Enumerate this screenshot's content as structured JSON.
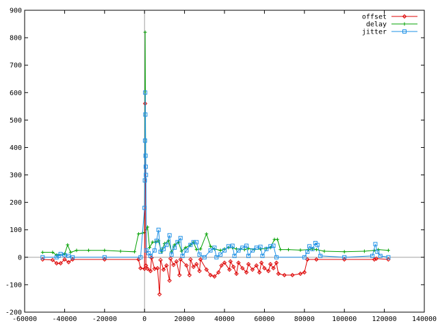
{
  "chart_data": {
    "type": "line",
    "title": "",
    "xlabel": "",
    "ylabel": "",
    "xlim": [
      -60000,
      140000
    ],
    "ylim": [
      -200,
      900
    ],
    "xticks": [
      -60000,
      -40000,
      -20000,
      0,
      20000,
      40000,
      60000,
      80000,
      100000,
      120000,
      140000
    ],
    "yticks": [
      -200,
      -100,
      0,
      100,
      200,
      300,
      400,
      500,
      600,
      700,
      800,
      900
    ],
    "grid": false,
    "legend_position": "top-right",
    "reference_lines": {
      "x_zero": true,
      "y_zero": true
    },
    "series": [
      {
        "name": "offset",
        "color": "#dd0000",
        "marker": "diamond",
        "points": [
          [
            -51000,
            -8
          ],
          [
            -46000,
            -10
          ],
          [
            -44000,
            -22
          ],
          [
            -42000,
            -22
          ],
          [
            -40000,
            -8
          ],
          [
            -38000,
            -18
          ],
          [
            -36000,
            -8
          ],
          [
            -20000,
            -8
          ],
          [
            -3000,
            -8
          ],
          [
            -2000,
            -40
          ],
          [
            0,
            -42
          ],
          [
            300,
            560
          ],
          [
            700,
            -30
          ],
          [
            1500,
            -42
          ],
          [
            3000,
            -50
          ],
          [
            3500,
            -2
          ],
          [
            5000,
            -42
          ],
          [
            6500,
            -40
          ],
          [
            7500,
            -135
          ],
          [
            8000,
            -10
          ],
          [
            9500,
            -45
          ],
          [
            11000,
            -30
          ],
          [
            12500,
            -85
          ],
          [
            13000,
            -5
          ],
          [
            14500,
            -28
          ],
          [
            16000,
            -15
          ],
          [
            17500,
            -65
          ],
          [
            18000,
            -8
          ],
          [
            21000,
            -30
          ],
          [
            22500,
            -65
          ],
          [
            23000,
            -8
          ],
          [
            24500,
            -35
          ],
          [
            26000,
            -25
          ],
          [
            27500,
            -50
          ],
          [
            28000,
            -8
          ],
          [
            31000,
            -45
          ],
          [
            33000,
            -65
          ],
          [
            35000,
            -70
          ],
          [
            37000,
            -55
          ],
          [
            38500,
            -30
          ],
          [
            40000,
            -20
          ],
          [
            42500,
            -45
          ],
          [
            43000,
            -15
          ],
          [
            44500,
            -35
          ],
          [
            46000,
            -60
          ],
          [
            47000,
            -20
          ],
          [
            49000,
            -40
          ],
          [
            51000,
            -55
          ],
          [
            52000,
            -25
          ],
          [
            54000,
            -45
          ],
          [
            56000,
            -30
          ],
          [
            57500,
            -55
          ],
          [
            58500,
            -20
          ],
          [
            60000,
            -40
          ],
          [
            62000,
            -50
          ],
          [
            63000,
            -25
          ],
          [
            64500,
            -40
          ],
          [
            66000,
            -20
          ],
          [
            67000,
            -60
          ],
          [
            70000,
            -65
          ],
          [
            74000,
            -65
          ],
          [
            78000,
            -60
          ],
          [
            80000,
            -55
          ],
          [
            81500,
            -8
          ],
          [
            86000,
            -8
          ],
          [
            100000,
            -8
          ],
          [
            115000,
            -8
          ],
          [
            116000,
            -5
          ],
          [
            122000,
            -8
          ]
        ]
      },
      {
        "name": "delay",
        "color": "#00a000",
        "marker": "plus",
        "points": [
          [
            -51000,
            18
          ],
          [
            -46000,
            18
          ],
          [
            -44000,
            8
          ],
          [
            -40000,
            12
          ],
          [
            -38500,
            45
          ],
          [
            -37000,
            18
          ],
          [
            -34000,
            25
          ],
          [
            -28000,
            25
          ],
          [
            -20000,
            25
          ],
          [
            -12000,
            22
          ],
          [
            -5000,
            20
          ],
          [
            -3000,
            85
          ],
          [
            -1000,
            88
          ],
          [
            0,
            90
          ],
          [
            300,
            820
          ],
          [
            700,
            100
          ],
          [
            1500,
            110
          ],
          [
            2500,
            35
          ],
          [
            4000,
            55
          ],
          [
            5500,
            55
          ],
          [
            7000,
            60
          ],
          [
            8500,
            20
          ],
          [
            10000,
            50
          ],
          [
            12000,
            60
          ],
          [
            13500,
            20
          ],
          [
            15000,
            45
          ],
          [
            17000,
            55
          ],
          [
            18500,
            22
          ],
          [
            20500,
            35
          ],
          [
            23000,
            45
          ],
          [
            24500,
            55
          ],
          [
            26000,
            28
          ],
          [
            28000,
            30
          ],
          [
            31000,
            85
          ],
          [
            33000,
            40
          ],
          [
            35000,
            30
          ],
          [
            38000,
            25
          ],
          [
            40000,
            30
          ],
          [
            42000,
            35
          ],
          [
            44000,
            35
          ],
          [
            46000,
            30
          ],
          [
            48000,
            30
          ],
          [
            50000,
            28
          ],
          [
            52000,
            32
          ],
          [
            55000,
            28
          ],
          [
            58000,
            30
          ],
          [
            61000,
            32
          ],
          [
            63000,
            35
          ],
          [
            65000,
            65
          ],
          [
            66500,
            65
          ],
          [
            68000,
            28
          ],
          [
            72000,
            28
          ],
          [
            78000,
            26
          ],
          [
            82000,
            28
          ],
          [
            84000,
            30
          ],
          [
            86000,
            28
          ],
          [
            90000,
            22
          ],
          [
            100000,
            20
          ],
          [
            110000,
            22
          ],
          [
            115000,
            25
          ],
          [
            117000,
            28
          ],
          [
            122000,
            25
          ]
        ]
      },
      {
        "name": "jitter",
        "color": "#1e90e6",
        "marker": "square",
        "points": [
          [
            -51000,
            0
          ],
          [
            -44000,
            0
          ],
          [
            -43000,
            5
          ],
          [
            -42000,
            12
          ],
          [
            -40000,
            8
          ],
          [
            -38000,
            5
          ],
          [
            -36000,
            0
          ],
          [
            -20000,
            0
          ],
          [
            -2000,
            0
          ],
          [
            0,
            180
          ],
          [
            150,
            280
          ],
          [
            250,
            425
          ],
          [
            320,
            600
          ],
          [
            400,
            520
          ],
          [
            500,
            370
          ],
          [
            600,
            330
          ],
          [
            700,
            300
          ],
          [
            900,
            25
          ],
          [
            2000,
            15
          ],
          [
            3000,
            5
          ],
          [
            5000,
            25
          ],
          [
            6000,
            60
          ],
          [
            7000,
            100
          ],
          [
            8000,
            20
          ],
          [
            9500,
            30
          ],
          [
            11000,
            45
          ],
          [
            12500,
            80
          ],
          [
            13500,
            10
          ],
          [
            15000,
            35
          ],
          [
            16500,
            55
          ],
          [
            18000,
            70
          ],
          [
            19000,
            5
          ],
          [
            21000,
            25
          ],
          [
            23000,
            45
          ],
          [
            24500,
            55
          ],
          [
            26000,
            55
          ],
          [
            27500,
            10
          ],
          [
            30000,
            0
          ],
          [
            33000,
            25
          ],
          [
            35000,
            35
          ],
          [
            36000,
            0
          ],
          [
            38000,
            10
          ],
          [
            40000,
            25
          ],
          [
            42000,
            40
          ],
          [
            44000,
            42
          ],
          [
            45000,
            5
          ],
          [
            47000,
            25
          ],
          [
            49000,
            35
          ],
          [
            51000,
            42
          ],
          [
            52000,
            5
          ],
          [
            54000,
            25
          ],
          [
            56000,
            35
          ],
          [
            58000,
            38
          ],
          [
            59000,
            5
          ],
          [
            61000,
            30
          ],
          [
            63000,
            40
          ],
          [
            64500,
            42
          ],
          [
            66000,
            0
          ],
          [
            80000,
            0
          ],
          [
            81500,
            20
          ],
          [
            82500,
            40
          ],
          [
            84000,
            30
          ],
          [
            85500,
            52
          ],
          [
            86500,
            45
          ],
          [
            88000,
            5
          ],
          [
            100000,
            0
          ],
          [
            114000,
            5
          ],
          [
            115500,
            48
          ],
          [
            116500,
            20
          ],
          [
            118000,
            5
          ],
          [
            122000,
            0
          ]
        ]
      }
    ]
  }
}
